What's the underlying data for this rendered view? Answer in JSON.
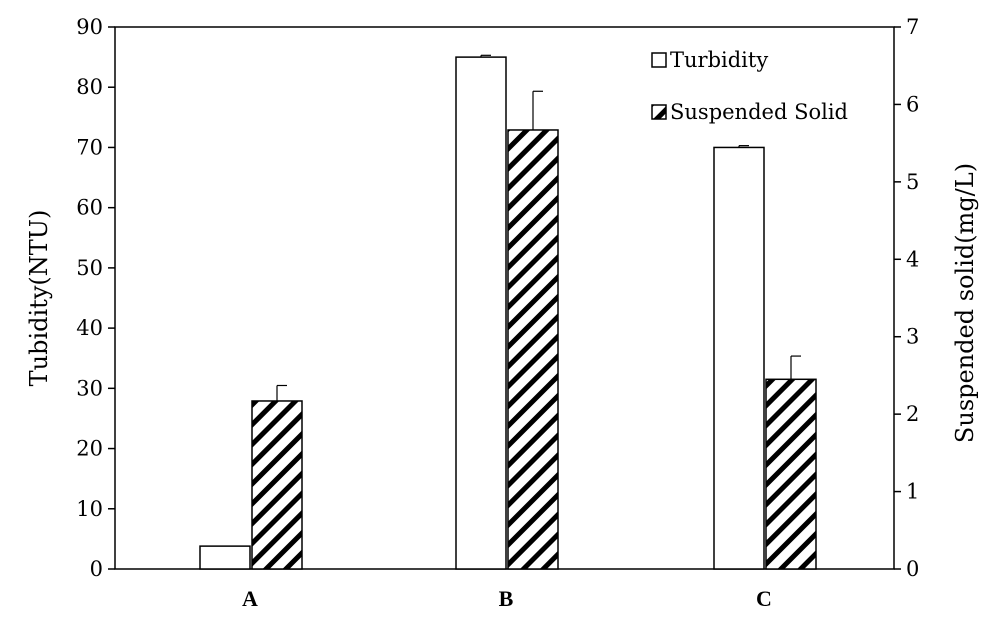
{
  "chart_data": {
    "type": "bar",
    "categories": [
      "A",
      "B",
      "C"
    ],
    "series": [
      {
        "name": "Turbidity",
        "axis": "left",
        "values": [
          3.8,
          85,
          70
        ],
        "errors": [
          0,
          0.3,
          0.3
        ],
        "fill": "#ffffff",
        "pattern": "none"
      },
      {
        "name": "Suspended Solid",
        "axis": "right",
        "values": [
          2.17,
          5.67,
          2.45
        ],
        "errors": [
          0.2,
          0.5,
          0.3
        ],
        "fill": "#ffffff",
        "pattern": "diagonal-hatch"
      }
    ],
    "ylabel": "Tubidity(NTU)",
    "y2label": "Suspended solid(mg/L)",
    "ylim": [
      0,
      90
    ],
    "y2lim": [
      0,
      7
    ],
    "yticks": [
      "0",
      "10",
      "20",
      "30",
      "40",
      "50",
      "60",
      "70",
      "80",
      "90"
    ],
    "y2ticks": [
      "0",
      "1",
      "2",
      "3",
      "4",
      "5",
      "6",
      "7"
    ],
    "grid": false,
    "legend": {
      "position": "top-right",
      "entries": [
        "Turbidity",
        "Suspended Solid"
      ]
    }
  }
}
